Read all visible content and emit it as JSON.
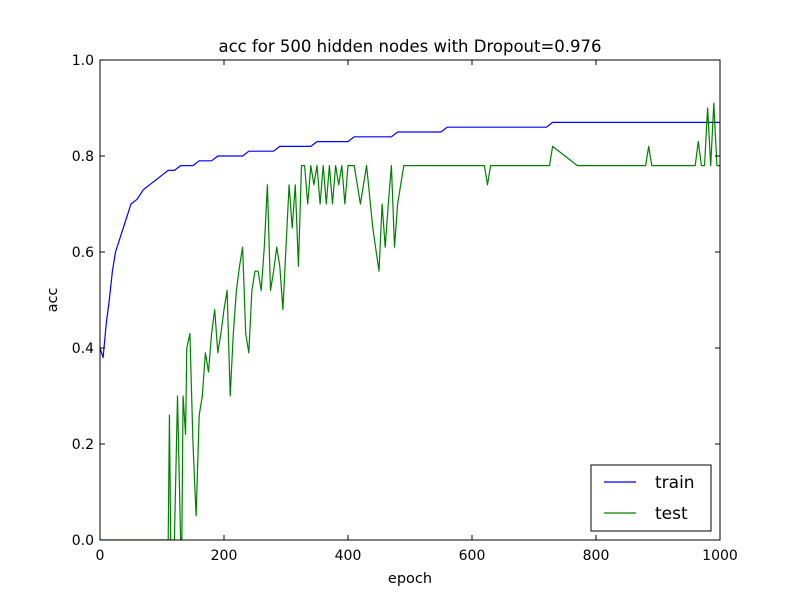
{
  "chart_data": {
    "type": "line",
    "title": "acc for 500 hidden nodes with Dropout=0.976",
    "xlabel": "epoch",
    "ylabel": "acc",
    "xlim": [
      0,
      1000
    ],
    "ylim": [
      0,
      1.0
    ],
    "xticks": [
      0,
      200,
      400,
      600,
      800,
      1000
    ],
    "yticks": [
      0.0,
      0.2,
      0.4,
      0.6,
      0.8,
      1.0
    ],
    "xtick_labels": [
      "0",
      "200",
      "400",
      "600",
      "800",
      "1000"
    ],
    "ytick_labels": [
      "0.0",
      "0.2",
      "0.4",
      "0.6",
      "0.8",
      "1.0"
    ],
    "grid": false,
    "legend": "lower-right",
    "series": [
      {
        "name": "train",
        "color": "#0000ff",
        "x": [
          0,
          5,
          10,
          15,
          20,
          25,
          30,
          35,
          40,
          45,
          50,
          60,
          70,
          80,
          90,
          100,
          110,
          120,
          130,
          140,
          150,
          160,
          170,
          180,
          190,
          200,
          210,
          220,
          230,
          240,
          250,
          260,
          270,
          280,
          290,
          300,
          310,
          320,
          330,
          340,
          350,
          360,
          370,
          380,
          390,
          400,
          410,
          420,
          430,
          440,
          450,
          460,
          470,
          480,
          490,
          500,
          510,
          520,
          530,
          540,
          550,
          560,
          570,
          580,
          590,
          600,
          610,
          620,
          630,
          640,
          650,
          660,
          670,
          680,
          690,
          700,
          710,
          720,
          730,
          740,
          750,
          760,
          770,
          780,
          790,
          800,
          810,
          820,
          830,
          840,
          850,
          860,
          870,
          880,
          890,
          900,
          910,
          920,
          930,
          940,
          950,
          960,
          970,
          980,
          990,
          1000
        ],
        "y": [
          0.4,
          0.38,
          0.45,
          0.5,
          0.56,
          0.6,
          0.62,
          0.64,
          0.66,
          0.68,
          0.7,
          0.71,
          0.73,
          0.74,
          0.75,
          0.76,
          0.77,
          0.77,
          0.78,
          0.78,
          0.78,
          0.79,
          0.79,
          0.79,
          0.8,
          0.8,
          0.8,
          0.8,
          0.8,
          0.81,
          0.81,
          0.81,
          0.81,
          0.81,
          0.82,
          0.82,
          0.82,
          0.82,
          0.82,
          0.82,
          0.83,
          0.83,
          0.83,
          0.83,
          0.83,
          0.83,
          0.84,
          0.84,
          0.84,
          0.84,
          0.84,
          0.84,
          0.84,
          0.85,
          0.85,
          0.85,
          0.85,
          0.85,
          0.85,
          0.85,
          0.85,
          0.86,
          0.86,
          0.86,
          0.86,
          0.86,
          0.86,
          0.86,
          0.86,
          0.86,
          0.86,
          0.86,
          0.86,
          0.86,
          0.86,
          0.86,
          0.86,
          0.86,
          0.87,
          0.87,
          0.87,
          0.87,
          0.87,
          0.87,
          0.87,
          0.87,
          0.87,
          0.87,
          0.87,
          0.87,
          0.87,
          0.87,
          0.87,
          0.87,
          0.87,
          0.87,
          0.87,
          0.87,
          0.87,
          0.87,
          0.87,
          0.87,
          0.87,
          0.87,
          0.87,
          0.87
        ]
      },
      {
        "name": "test",
        "color": "#008000",
        "x": [
          0,
          110,
          112,
          114,
          116,
          118,
          120,
          125,
          130,
          132,
          134,
          138,
          140,
          145,
          150,
          155,
          160,
          165,
          170,
          175,
          180,
          185,
          190,
          195,
          200,
          205,
          210,
          215,
          220,
          225,
          230,
          235,
          240,
          245,
          250,
          255,
          260,
          265,
          270,
          275,
          280,
          285,
          290,
          295,
          300,
          305,
          310,
          315,
          320,
          325,
          330,
          335,
          340,
          345,
          350,
          355,
          360,
          365,
          370,
          375,
          380,
          385,
          390,
          395,
          400,
          410,
          420,
          430,
          440,
          450,
          455,
          460,
          465,
          470,
          475,
          480,
          490,
          500,
          510,
          520,
          530,
          600,
          610,
          620,
          625,
          630,
          700,
          720,
          725,
          730,
          770,
          775,
          780,
          790,
          880,
          885,
          890,
          900,
          960,
          965,
          970,
          975,
          980,
          985,
          990,
          995,
          1000
        ],
        "y": [
          0.0,
          0.0,
          0.26,
          0.0,
          0.0,
          0.0,
          0.0,
          0.3,
          0.0,
          0.0,
          0.3,
          0.22,
          0.4,
          0.43,
          0.2,
          0.05,
          0.26,
          0.3,
          0.39,
          0.35,
          0.43,
          0.48,
          0.39,
          0.43,
          0.48,
          0.52,
          0.3,
          0.43,
          0.52,
          0.57,
          0.61,
          0.43,
          0.39,
          0.52,
          0.56,
          0.56,
          0.52,
          0.61,
          0.74,
          0.52,
          0.56,
          0.61,
          0.57,
          0.48,
          0.61,
          0.74,
          0.65,
          0.74,
          0.57,
          0.78,
          0.78,
          0.7,
          0.78,
          0.74,
          0.78,
          0.7,
          0.78,
          0.7,
          0.78,
          0.7,
          0.78,
          0.74,
          0.78,
          0.7,
          0.78,
          0.78,
          0.7,
          0.78,
          0.65,
          0.56,
          0.7,
          0.61,
          0.7,
          0.78,
          0.61,
          0.7,
          0.78,
          0.78,
          0.78,
          0.78,
          0.78,
          0.78,
          0.78,
          0.78,
          0.74,
          0.78,
          0.78,
          0.78,
          0.78,
          0.82,
          0.78,
          0.78,
          0.78,
          0.78,
          0.78,
          0.82,
          0.78,
          0.78,
          0.78,
          0.83,
          0.78,
          0.78,
          0.9,
          0.78,
          0.91,
          0.78,
          0.78
        ]
      }
    ]
  }
}
